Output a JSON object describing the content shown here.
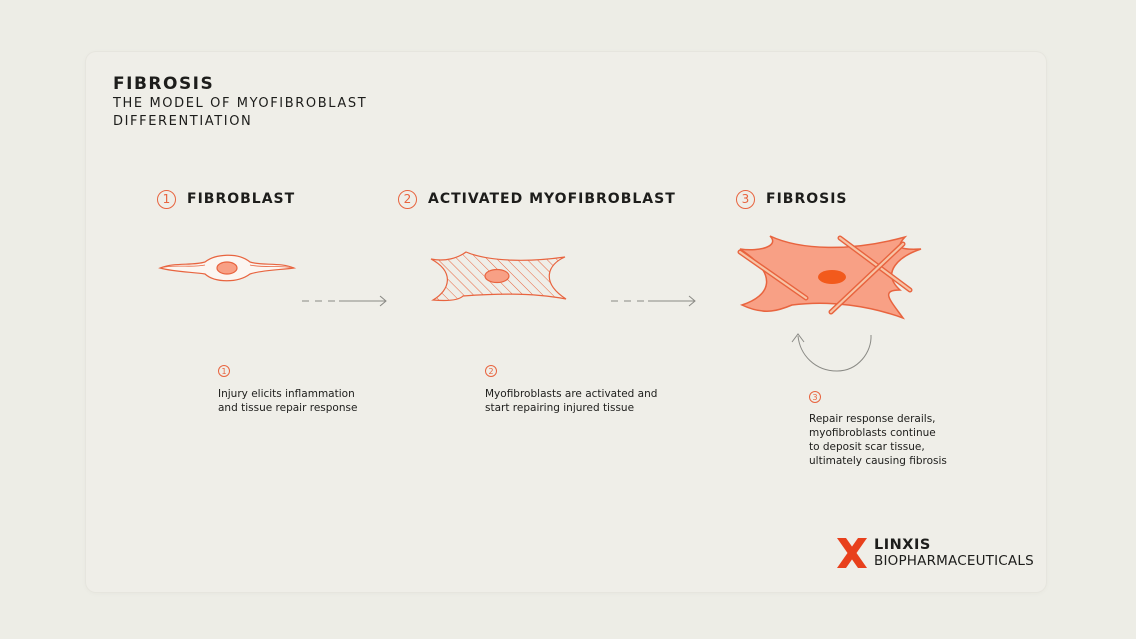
{
  "title": "FIBROSIS",
  "subtitle": "THE MODEL OF MYOFIBROBLAST DIFFERENTIATION",
  "steps": [
    {
      "number": "1",
      "label": "FIBROBLAST",
      "description_lines": [
        "Injury elicits inflammation",
        "and tissue repair response"
      ]
    },
    {
      "number": "2",
      "label": "ACTIVATED MYOFIBROBLAST",
      "description_lines": [
        "Myofibroblasts are activated and",
        "start repairing injured tissue"
      ]
    },
    {
      "number": "3",
      "label": "FIBROSIS",
      "description_lines": [
        "Repair response derails,",
        "myofibroblasts continue",
        "to deposit scar tissue,",
        "ultimately causing fibrosis"
      ]
    }
  ],
  "logo": {
    "line1": "LINXIS",
    "line2": "BIOPHARMACEUTICALS"
  },
  "colors": {
    "accent": "#e8643f",
    "cell_fill": "#f8a085",
    "nucleus": "#f25a1c",
    "background": "#efeee8"
  }
}
